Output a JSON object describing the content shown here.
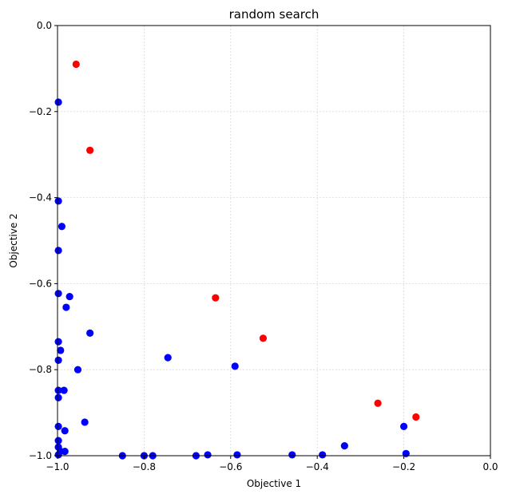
{
  "chart_data": {
    "type": "scatter",
    "title": "random search",
    "xlabel": "Objective 1",
    "ylabel": "Objective 2",
    "xlim": [
      -1.0,
      0.0
    ],
    "ylim": [
      -1.0,
      0.0
    ],
    "xticks": [
      -1.0,
      -0.8,
      -0.6,
      -0.4,
      -0.2,
      0.0
    ],
    "yticks": [
      -1.0,
      -0.8,
      -0.6,
      -0.4,
      -0.2,
      0.0
    ],
    "xtick_labels": [
      "−1.0",
      "−0.8",
      "−0.6",
      "−0.4",
      "−0.2",
      "0.0"
    ],
    "ytick_labels": [
      "−1.0",
      "−0.8",
      "−0.6",
      "−0.4",
      "−0.2",
      "0.0"
    ],
    "grid": true,
    "legend": "none",
    "series": [
      {
        "color": "#0000ff",
        "points": [
          [
            -0.998,
            -0.178
          ],
          [
            -0.998,
            -0.408
          ],
          [
            -0.99,
            -0.467
          ],
          [
            -0.998,
            -0.523
          ],
          [
            -0.998,
            -0.623
          ],
          [
            -0.972,
            -0.63
          ],
          [
            -0.98,
            -0.655
          ],
          [
            -0.925,
            -0.715
          ],
          [
            -0.998,
            -0.735
          ],
          [
            -0.993,
            -0.755
          ],
          [
            -0.998,
            -0.778
          ],
          [
            -0.953,
            -0.8
          ],
          [
            -0.745,
            -0.772
          ],
          [
            -0.59,
            -0.792
          ],
          [
            -0.998,
            -0.848
          ],
          [
            -0.985,
            -0.848
          ],
          [
            -0.998,
            -0.865
          ],
          [
            -0.937,
            -0.922
          ],
          [
            -0.998,
            -0.932
          ],
          [
            -0.983,
            -0.942
          ],
          [
            -0.998,
            -0.965
          ],
          [
            -0.998,
            -0.98
          ],
          [
            -0.993,
            -0.99
          ],
          [
            -0.983,
            -0.99
          ],
          [
            -0.998,
            -0.998
          ],
          [
            -0.85,
            -1.0
          ],
          [
            -0.8,
            -1.0
          ],
          [
            -0.78,
            -1.0
          ],
          [
            -0.68,
            -1.0
          ],
          [
            -0.653,
            -0.998
          ],
          [
            -0.585,
            -0.998
          ],
          [
            -0.458,
            -0.998
          ],
          [
            -0.388,
            -0.998
          ],
          [
            -0.337,
            -0.977
          ],
          [
            -0.2,
            -0.932
          ],
          [
            -0.195,
            -0.995
          ]
        ]
      },
      {
        "color": "#ff0000",
        "points": [
          [
            -0.957,
            -0.09
          ],
          [
            -0.925,
            -0.29
          ],
          [
            -0.635,
            -0.633
          ],
          [
            -0.525,
            -0.727
          ],
          [
            -0.26,
            -0.878
          ],
          [
            -0.172,
            -0.91
          ]
        ]
      }
    ]
  }
}
